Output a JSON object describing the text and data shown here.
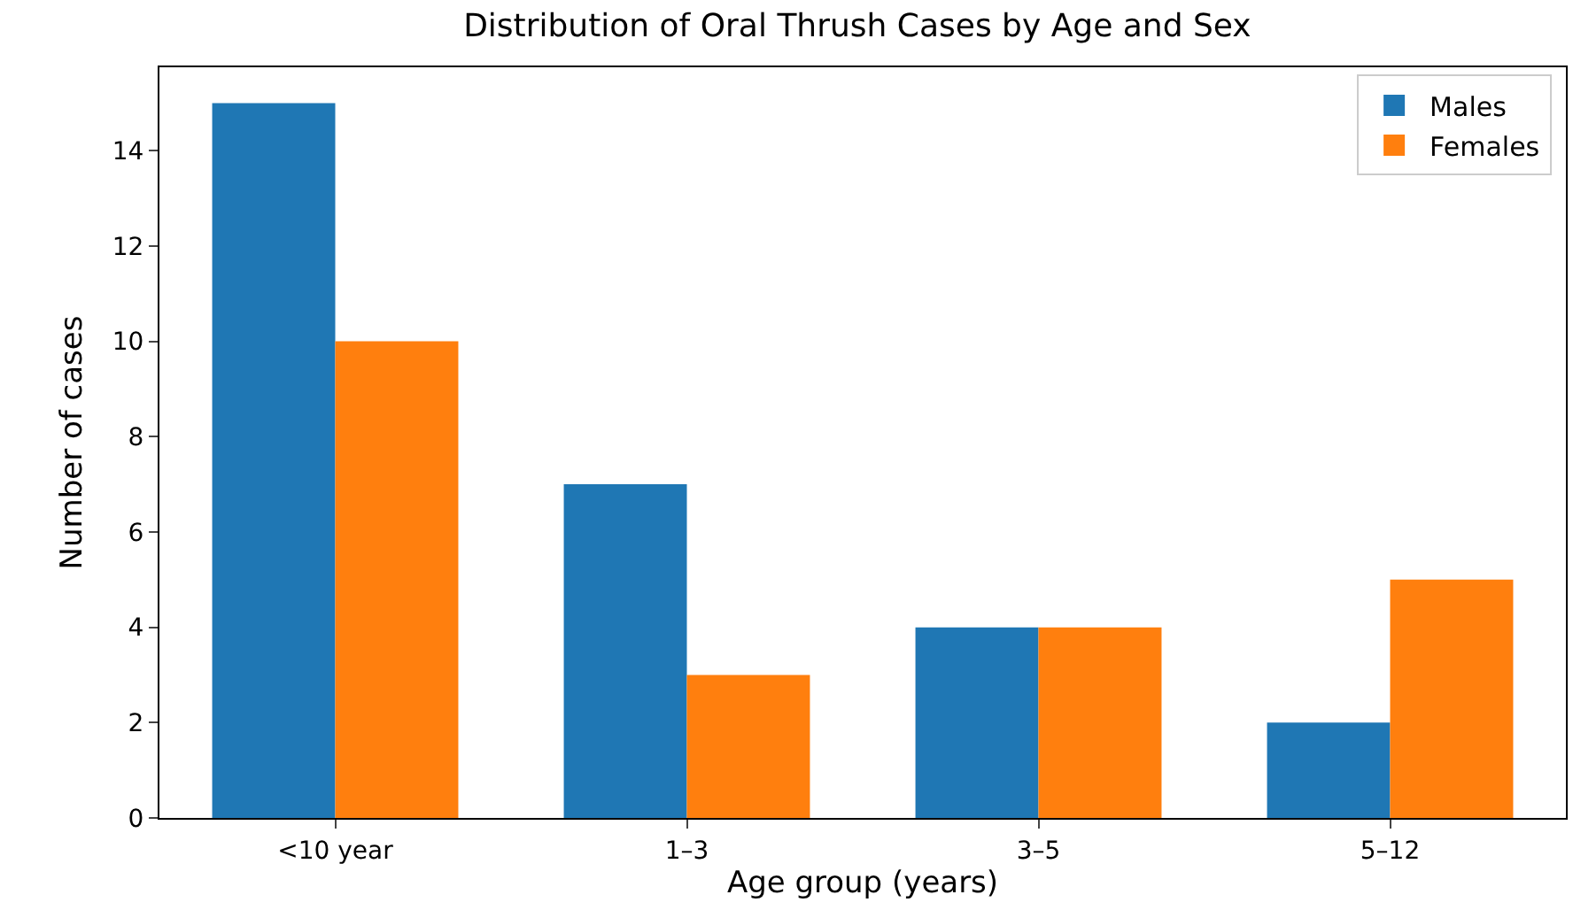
{
  "chart_data": {
    "type": "bar",
    "title": "Distribution of Oral Thrush Cases by Age and Sex",
    "xlabel": "Age group (years)",
    "ylabel": "Number of cases",
    "categories": [
      "<10 year",
      "1–3",
      "3–5",
      "5–12"
    ],
    "series": [
      {
        "name": "Males",
        "color": "#1f77b4",
        "values": [
          15,
          7,
          4,
          2
        ]
      },
      {
        "name": "Females",
        "color": "#ff7f0e",
        "values": [
          10,
          3,
          4,
          5
        ]
      }
    ],
    "ylim": [
      0,
      15.75
    ],
    "yticks": [
      0,
      2,
      4,
      6,
      8,
      10,
      12,
      14
    ],
    "grid": false,
    "legend": "top right"
  }
}
